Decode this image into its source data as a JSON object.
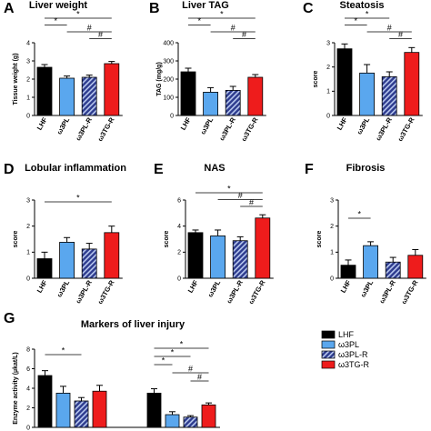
{
  "figure": {
    "groups": [
      "LHF",
      "ω3PL",
      "ω3PL-R",
      "ω3TG-R"
    ],
    "legend_position": "right of panel G"
  },
  "colors": {
    "LHF": "#000000",
    "w3PL": "#5aa7ee",
    "w3PL_R_base": "#2d3b8e",
    "w3PL_R_stripe": "#b7c7ee",
    "w3TG_R": "#ee1c1c"
  },
  "chart_data": [
    {
      "panel": "A",
      "type": "bar",
      "title": "Liver weight",
      "ylabel": "Tissue weight (g)",
      "ylim": [
        0,
        4
      ],
      "yticks": [
        0,
        1,
        2,
        3,
        4
      ],
      "categories": [
        "LHF",
        "ω3PL",
        "ω3PL-R",
        "ω3TG-R"
      ],
      "values": [
        2.65,
        2.05,
        2.1,
        2.85
      ],
      "errors": [
        0.15,
        0.12,
        0.12,
        0.12
      ],
      "annotations": [
        {
          "from": 0,
          "to": 3,
          "label": "*"
        },
        {
          "from": 0,
          "to": 1,
          "label": "*"
        },
        {
          "from": 1,
          "to": 3,
          "label": "#"
        },
        {
          "from": 2,
          "to": 3,
          "label": "#"
        }
      ]
    },
    {
      "panel": "B",
      "type": "bar",
      "title": "Liver TAG",
      "ylabel": "TAG (mg/g)",
      "ylim": [
        0,
        400
      ],
      "yticks": [
        0,
        100,
        200,
        300,
        400
      ],
      "categories": [
        "LHF",
        "ω3PL",
        "ω3PL-R",
        "ω3TG-R"
      ],
      "values": [
        240,
        128,
        138,
        210
      ],
      "errors": [
        20,
        25,
        22,
        15
      ],
      "annotations": [
        {
          "from": 0,
          "to": 3,
          "label": "*"
        },
        {
          "from": 0,
          "to": 1,
          "label": "*"
        },
        {
          "from": 1,
          "to": 3,
          "label": "#"
        },
        {
          "from": 2,
          "to": 3,
          "label": "#"
        }
      ]
    },
    {
      "panel": "C",
      "type": "bar",
      "title": "Steatosis",
      "ylabel": "score",
      "ylim": [
        0,
        3
      ],
      "yticks": [
        0,
        1,
        2,
        3
      ],
      "categories": [
        "LHF",
        "ω3PL",
        "ω3PL-R",
        "ω3TG-R"
      ],
      "values": [
        2.75,
        1.75,
        1.6,
        2.6
      ],
      "errors": [
        0.2,
        0.35,
        0.2,
        0.2
      ],
      "annotations": [
        {
          "from": 0,
          "to": 2,
          "label": "*"
        },
        {
          "from": 0,
          "to": 1,
          "label": "*"
        },
        {
          "from": 1,
          "to": 3,
          "label": "#"
        },
        {
          "from": 2,
          "to": 3,
          "label": "#"
        }
      ]
    },
    {
      "panel": "D",
      "type": "bar",
      "title": "Lobular inflammation",
      "ylabel": "score",
      "ylim": [
        0,
        3
      ],
      "yticks": [
        0,
        1,
        2,
        3
      ],
      "categories": [
        "LHF",
        "ω3PL",
        "ω3PL-R",
        "ω3TG-R"
      ],
      "values": [
        0.75,
        1.38,
        1.12,
        1.75
      ],
      "errors": [
        0.25,
        0.18,
        0.22,
        0.25
      ],
      "annotations": [
        {
          "from": 0,
          "to": 3,
          "label": "*"
        }
      ]
    },
    {
      "panel": "E",
      "type": "bar",
      "title": "NAS",
      "ylabel": "score",
      "ylim": [
        0,
        6
      ],
      "yticks": [
        0,
        2,
        4,
        6
      ],
      "categories": [
        "LHF",
        "ω3PL",
        "ω3PL-R",
        "ω3TG-R"
      ],
      "values": [
        3.5,
        3.25,
        2.88,
        4.62
      ],
      "errors": [
        0.2,
        0.45,
        0.3,
        0.25
      ],
      "annotations": [
        {
          "from": 0,
          "to": 3,
          "label": "*"
        },
        {
          "from": 1,
          "to": 3,
          "label": "#"
        },
        {
          "from": 2,
          "to": 3,
          "label": "#"
        }
      ]
    },
    {
      "panel": "F",
      "type": "bar",
      "title": "Fibrosis",
      "ylabel": "score",
      "ylim": [
        0,
        3
      ],
      "yticks": [
        0,
        1,
        2,
        3
      ],
      "categories": [
        "LHF",
        "ω3PL",
        "ω3PL-R",
        "ω3TG-R"
      ],
      "values": [
        0.5,
        1.25,
        0.62,
        0.88
      ],
      "errors": [
        0.2,
        0.15,
        0.18,
        0.22
      ],
      "annotations": [
        {
          "from": 0,
          "to": 1,
          "label": "*"
        }
      ]
    },
    {
      "panel": "G",
      "type": "bar",
      "title": "Markers of liver injury",
      "ylabel": "Enzyme activity (µkat/L)",
      "ylim": [
        0,
        8
      ],
      "yticks": [
        0,
        2,
        4,
        6,
        8
      ],
      "clusters": 2,
      "series": [
        {
          "name": "LHF",
          "values": [
            5.3,
            3.5
          ],
          "errors": [
            0.5,
            0.45
          ]
        },
        {
          "name": "ω3PL",
          "values": [
            3.5,
            1.3
          ],
          "errors": [
            0.7,
            0.3
          ]
        },
        {
          "name": "ω3PL-R",
          "values": [
            2.7,
            1.05
          ],
          "errors": [
            0.35,
            0.15
          ]
        },
        {
          "name": "ω3TG-R",
          "values": [
            3.7,
            2.3
          ],
          "errors": [
            0.6,
            0.2
          ]
        }
      ],
      "annotations": [
        {
          "cluster": 0,
          "from": 0,
          "to": 2,
          "label": "*"
        },
        {
          "cluster": 1,
          "from": 0,
          "to": 3,
          "label": "*"
        },
        {
          "cluster": 1,
          "from": 0,
          "to": 2,
          "label": "*"
        },
        {
          "cluster": 1,
          "from": 0,
          "to": 1,
          "label": "*"
        },
        {
          "cluster": 1,
          "from": 1,
          "to": 3,
          "label": "#"
        },
        {
          "cluster": 1,
          "from": 2,
          "to": 3,
          "label": "#"
        }
      ]
    }
  ]
}
